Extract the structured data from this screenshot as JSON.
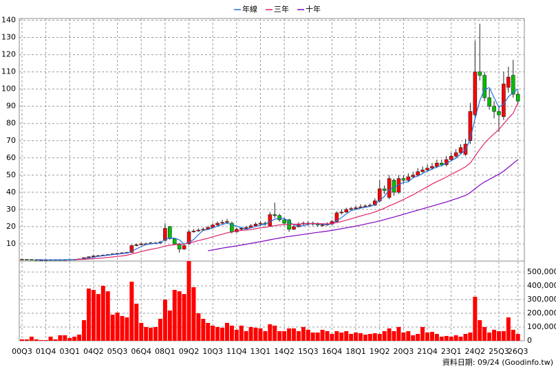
{
  "chart_data": {
    "type": "candlestick",
    "categories": [
      "00Q3",
      null,
      null,
      null,
      null,
      "01Q4",
      null,
      null,
      null,
      null,
      "03Q1",
      null,
      null,
      null,
      null,
      "04Q2",
      null,
      null,
      null,
      null,
      "05Q3",
      null,
      null,
      null,
      null,
      "06Q4",
      null,
      null,
      null,
      null,
      "08Q1",
      null,
      null,
      null,
      null,
      "09Q2",
      null,
      null,
      null,
      null,
      "10Q3",
      null,
      null,
      null,
      null,
      "11Q4",
      null,
      null,
      null,
      null,
      "13Q1",
      null,
      null,
      null,
      null,
      "14Q2",
      null,
      null,
      null,
      null,
      "15Q3",
      null,
      null,
      null,
      null,
      "16Q4",
      null,
      null,
      null,
      null,
      "18Q1",
      null,
      null,
      null,
      null,
      "19Q2",
      null,
      null,
      null,
      null,
      "20Q3",
      null,
      null,
      null,
      null,
      "21Q4",
      null,
      null,
      null,
      null,
      "23Q1",
      null,
      null,
      null,
      null,
      "24Q2",
      null,
      null,
      null,
      null,
      "25Q3",
      null,
      null,
      null,
      "26Q3"
    ],
    "open": [
      1.0,
      1.0,
      0.9,
      0.8,
      0.7,
      0.7,
      0.7,
      0.8,
      0.8,
      0.7,
      0.8,
      0.9,
      1.0,
      1.3,
      2.0,
      2.5,
      3.0,
      3.2,
      3.5,
      3.8,
      4.2,
      4.5,
      4.8,
      5.0,
      9.0,
      9.5,
      10.0,
      10.0,
      10.5,
      10.5,
      12.0,
      20.0,
      13.0,
      10.0,
      7.0,
      10.0,
      17.0,
      17.5,
      18.0,
      18.5,
      19.5,
      21.0,
      22.0,
      22.5,
      22.0,
      17.0,
      18.5,
      19.0,
      19.5,
      20.5,
      21.5,
      22.0,
      20.5,
      27.0,
      26.5,
      24.0,
      24.0,
      18.5,
      20.0,
      21.5,
      22.0,
      22.0,
      21.5,
      21.0,
      21.0,
      21.5,
      23.0,
      28.0,
      28.5,
      30.0,
      30.5,
      31.0,
      31.5,
      32.0,
      32.5,
      35.0,
      42.0,
      37.0,
      47.0,
      40.0,
      48.0,
      47.0,
      49.0,
      50.0,
      52.0,
      53.0,
      54.0,
      55.0,
      57.0,
      56.0,
      59.0,
      61.0,
      63.0,
      62.0,
      70.0,
      85.0,
      110.0,
      108.0,
      95.0,
      90.0,
      87.0,
      84.0,
      101.0,
      108.0,
      97.0
    ],
    "high": [
      1.1,
      1.0,
      0.9,
      0.8,
      0.8,
      0.8,
      0.9,
      0.9,
      0.9,
      0.9,
      1.0,
      1.1,
      1.4,
      2.2,
      2.8,
      3.3,
      3.5,
      3.8,
      4.1,
      4.5,
      4.8,
      5.1,
      5.4,
      9.5,
      10.2,
      10.6,
      10.8,
      11.2,
      11.3,
      11.8,
      22.0,
      20.5,
      13.5,
      10.5,
      9.8,
      18.0,
      18.5,
      19.0,
      19.5,
      20.5,
      22.0,
      23.0,
      24.0,
      24.5,
      23.0,
      19.5,
      20.0,
      20.5,
      21.5,
      22.5,
      23.0,
      23.0,
      28.5,
      34.0,
      27.5,
      25.0,
      24.5,
      21.0,
      22.5,
      23.0,
      23.0,
      23.0,
      22.5,
      22.0,
      22.5,
      24.0,
      29.0,
      30.0,
      31.0,
      31.5,
      32.0,
      33.0,
      33.0,
      33.5,
      36.5,
      47.0,
      44.0,
      50.0,
      48.0,
      50.0,
      50.0,
      51.0,
      52.0,
      54.0,
      55.0,
      56.0,
      57.0,
      59.0,
      59.0,
      61.0,
      63.0,
      65.0,
      68.0,
      71.0,
      92.0,
      128.0,
      138.0,
      110.0,
      100.0,
      93.0,
      90.0,
      110.0,
      113.0,
      117.0,
      99.0
    ],
    "low": [
      0.9,
      0.8,
      0.7,
      0.6,
      0.6,
      0.6,
      0.7,
      0.7,
      0.6,
      0.7,
      0.8,
      0.9,
      1.0,
      1.3,
      2.0,
      2.4,
      2.9,
      3.1,
      3.4,
      3.7,
      4.0,
      4.3,
      4.6,
      4.8,
      8.6,
      9.2,
      9.4,
      9.8,
      9.9,
      10.2,
      11.5,
      12.5,
      9.5,
      5.0,
      6.5,
      9.5,
      16.5,
      17.0,
      17.5,
      18.0,
      19.0,
      20.5,
      21.0,
      21.5,
      16.0,
      16.5,
      18.0,
      18.5,
      19.0,
      20.0,
      20.5,
      20.5,
      20.0,
      25.0,
      23.0,
      21.0,
      17.0,
      18.0,
      19.5,
      20.5,
      20.5,
      20.5,
      20.0,
      20.0,
      20.5,
      21.0,
      22.5,
      27.0,
      28.0,
      29.5,
      30.0,
      30.5,
      31.0,
      31.5,
      32.0,
      34.0,
      39.0,
      36.0,
      38.0,
      39.0,
      45.0,
      46.0,
      48.0,
      49.0,
      51.0,
      52.0,
      53.0,
      54.0,
      55.0,
      55.0,
      58.0,
      60.0,
      62.0,
      61.0,
      68.0,
      83.0,
      105.0,
      93.0,
      88.0,
      83.0,
      75.0,
      82.0,
      98.0,
      95.0,
      91.0
    ],
    "close": [
      1.0,
      0.9,
      0.8,
      0.7,
      0.7,
      0.7,
      0.8,
      0.8,
      0.7,
      0.8,
      0.9,
      1.0,
      1.3,
      2.0,
      2.5,
      3.0,
      3.2,
      3.5,
      3.8,
      4.2,
      4.5,
      4.8,
      5.0,
      9.0,
      9.5,
      10.0,
      10.0,
      10.5,
      10.5,
      11.0,
      19.0,
      13.0,
      10.0,
      7.0,
      9.0,
      17.0,
      17.5,
      18.0,
      18.5,
      19.5,
      21.0,
      22.0,
      22.5,
      23.0,
      17.0,
      18.5,
      19.0,
      19.5,
      20.5,
      21.5,
      22.0,
      21.5,
      27.0,
      26.5,
      24.0,
      22.0,
      18.5,
      20.0,
      21.5,
      22.0,
      22.0,
      21.5,
      21.0,
      21.0,
      21.5,
      23.0,
      28.0,
      28.5,
      30.0,
      30.5,
      31.0,
      31.5,
      32.0,
      32.5,
      35.0,
      42.0,
      41.0,
      48.0,
      40.0,
      48.0,
      47.0,
      49.0,
      50.0,
      52.0,
      53.0,
      54.0,
      55.0,
      57.0,
      56.0,
      59.0,
      61.0,
      63.0,
      66.0,
      68.0,
      87.0,
      110.0,
      108.0,
      95.0,
      90.0,
      87.0,
      85.0,
      103.0,
      107.0,
      97.0,
      93.0
    ],
    "up_color": "#ff0000",
    "down_color": "#00c000",
    "series": [
      {
        "name": "年線",
        "color": "#1f6fe0",
        "values": [
          null,
          null,
          null,
          0.85,
          0.78,
          0.7,
          0.73,
          0.75,
          0.75,
          0.78,
          0.8,
          0.85,
          1.0,
          1.3,
          1.7,
          2.2,
          2.7,
          3.05,
          3.4,
          3.7,
          4.0,
          4.3,
          4.6,
          5.8,
          7.1,
          8.4,
          9.6,
          10.0,
          10.3,
          10.5,
          12.8,
          13.4,
          13.3,
          12.3,
          9.8,
          10.8,
          12.6,
          15.4,
          17.8,
          18.4,
          19.3,
          20.3,
          21.3,
          22.1,
          21.1,
          20.3,
          19.4,
          18.5,
          19.4,
          20.1,
          20.9,
          21.4,
          23.0,
          24.3,
          24.8,
          24.9,
          22.8,
          21.1,
          20.5,
          20.5,
          21.4,
          21.8,
          21.6,
          21.4,
          21.3,
          21.6,
          23.4,
          25.3,
          27.4,
          29.3,
          30.0,
          30.8,
          31.3,
          31.8,
          32.8,
          35.4,
          37.6,
          41.5,
          42.8,
          44.3,
          45.8,
          46.0,
          48.5,
          49.5,
          51.0,
          52.3,
          53.5,
          54.8,
          55.5,
          56.8,
          58.3,
          59.8,
          62.3,
          64.5,
          71.0,
          82.8,
          93.3,
          100.0,
          100.8,
          95.0,
          89.3,
          91.3,
          95.5,
          98.0,
          100.0
        ]
      },
      {
        "name": "三年",
        "color": "#e0206a",
        "values": [
          null,
          null,
          null,
          null,
          null,
          null,
          null,
          null,
          null,
          null,
          null,
          0.85,
          0.9,
          1.0,
          1.2,
          1.4,
          1.6,
          1.8,
          2.1,
          2.4,
          2.7,
          3.0,
          3.4,
          4.1,
          4.8,
          5.5,
          6.2,
          6.8,
          7.3,
          7.9,
          8.7,
          9.2,
          9.5,
          9.6,
          9.9,
          10.5,
          11.2,
          11.9,
          12.6,
          13.3,
          14.1,
          14.9,
          15.6,
          16.4,
          16.9,
          17.4,
          17.8,
          18.0,
          18.3,
          18.8,
          19.3,
          19.6,
          20.1,
          20.6,
          21.0,
          21.2,
          21.3,
          21.4,
          21.5,
          21.6,
          21.7,
          21.8,
          21.8,
          21.7,
          21.6,
          21.9,
          22.4,
          23.0,
          23.8,
          24.6,
          25.4,
          26.2,
          27.0,
          27.7,
          28.5,
          29.6,
          30.7,
          32.1,
          33.2,
          34.5,
          35.8,
          37.2,
          38.5,
          40.1,
          41.7,
          43.2,
          44.8,
          46.2,
          47.5,
          48.9,
          50.5,
          51.8,
          53.3,
          54.8,
          57.0,
          61.0,
          65.0,
          68.5,
          71.5,
          74.0,
          76.5,
          79.8,
          83.0,
          86.0,
          92.0
        ]
      },
      {
        "name": "十年",
        "color": "#8000c0",
        "values": [
          null,
          null,
          null,
          null,
          null,
          null,
          null,
          null,
          null,
          null,
          null,
          null,
          null,
          null,
          null,
          null,
          null,
          null,
          null,
          null,
          null,
          null,
          null,
          null,
          null,
          null,
          null,
          null,
          null,
          null,
          null,
          null,
          null,
          null,
          null,
          null,
          null,
          null,
          null,
          6.0,
          6.5,
          7.0,
          7.5,
          8.0,
          8.4,
          8.8,
          9.3,
          9.8,
          10.3,
          10.8,
          11.3,
          11.8,
          12.4,
          12.9,
          13.4,
          13.9,
          14.3,
          14.7,
          15.1,
          15.5,
          15.9,
          16.3,
          16.7,
          17.0,
          17.4,
          17.8,
          18.3,
          18.8,
          19.3,
          19.8,
          20.3,
          20.9,
          21.5,
          22.1,
          22.7,
          23.4,
          24.1,
          24.9,
          25.6,
          26.4,
          27.2,
          28.0,
          28.8,
          29.6,
          30.4,
          31.2,
          32.0,
          32.8,
          33.6,
          34.4,
          35.3,
          36.2,
          37.2,
          38.2,
          39.8,
          42.0,
          44.2,
          46.0,
          47.5,
          49.0,
          50.5,
          52.3,
          54.5,
          56.8,
          59.0
        ]
      }
    ],
    "ylim": [
      0,
      141
    ],
    "yticks": [
      10,
      20,
      30,
      40,
      50,
      60,
      70,
      80,
      90,
      100,
      110,
      120,
      130,
      140
    ],
    "grid": true,
    "volume": {
      "color": "#ff0000",
      "values": [
        10000,
        10000,
        30000,
        10000,
        5000,
        5000,
        30000,
        10000,
        40000,
        40000,
        20000,
        30000,
        45000,
        150000,
        380000,
        370000,
        340000,
        400000,
        360000,
        190000,
        205000,
        180000,
        170000,
        430000,
        270000,
        130000,
        100000,
        95000,
        100000,
        160000,
        300000,
        220000,
        370000,
        360000,
        340000,
        580000,
        390000,
        200000,
        160000,
        130000,
        110000,
        100000,
        95000,
        130000,
        110000,
        80000,
        110000,
        70000,
        100000,
        95000,
        90000,
        70000,
        120000,
        110000,
        70000,
        70000,
        90000,
        90000,
        70000,
        100000,
        80000,
        60000,
        60000,
        80000,
        70000,
        50000,
        70000,
        60000,
        70000,
        50000,
        60000,
        55000,
        45000,
        50000,
        55000,
        50000,
        70000,
        90000,
        70000,
        100000,
        60000,
        70000,
        40000,
        50000,
        100000,
        60000,
        65000,
        50000,
        30000,
        35000,
        30000,
        40000,
        30000,
        50000,
        60000,
        320000,
        150000,
        100000,
        60000,
        80000,
        70000,
        70000,
        170000,
        80000,
        50000
      ],
      "ylim": [
        0,
        580000
      ],
      "yticks": [
        0,
        {
          "value": 100000,
          "label": "100,000"
        },
        {
          "value": 200000,
          "label": "200,000"
        },
        {
          "value": 300000,
          "label": "300,000"
        },
        {
          "value": 400000,
          "label": "400,000"
        },
        {
          "value": 500000,
          "label": "500,000"
        }
      ]
    },
    "footnote": "資料日期: 09/24 (Goodinfo.tw)"
  }
}
